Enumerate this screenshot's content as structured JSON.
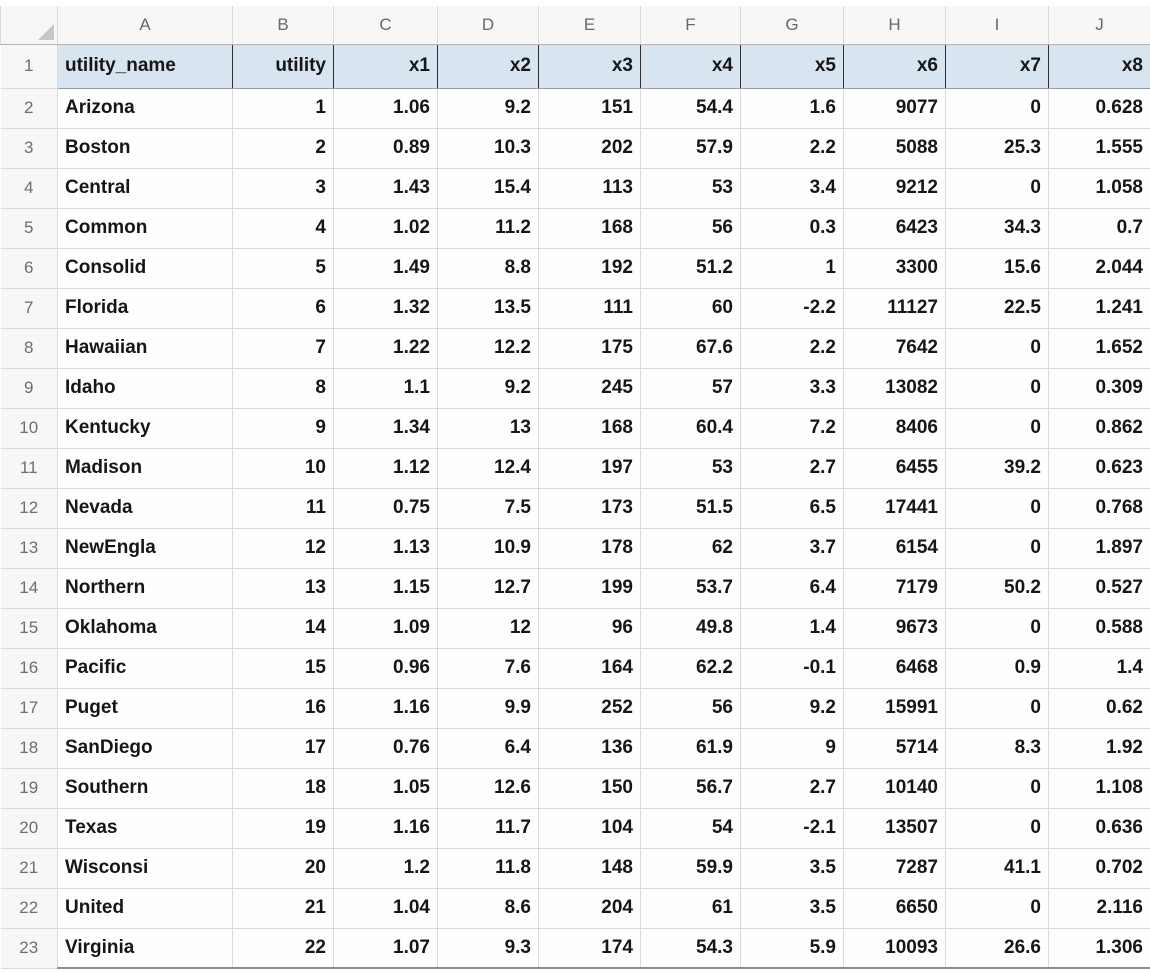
{
  "spreadsheet": {
    "column_letters": [
      "A",
      "B",
      "C",
      "D",
      "E",
      "F",
      "G",
      "H",
      "I",
      "J"
    ],
    "header_row": {
      "row_number": "1",
      "cells": [
        "utility_name",
        "utility",
        "x1",
        "x2",
        "x3",
        "x4",
        "x5",
        "x6",
        "x7",
        "x8"
      ]
    },
    "rows": [
      {
        "row_number": "2",
        "name": "Arizona",
        "values": [
          "1",
          "1.06",
          "9.2",
          "151",
          "54.4",
          "1.6",
          "9077",
          "0",
          "0.628"
        ]
      },
      {
        "row_number": "3",
        "name": "Boston",
        "values": [
          "2",
          "0.89",
          "10.3",
          "202",
          "57.9",
          "2.2",
          "5088",
          "25.3",
          "1.555"
        ]
      },
      {
        "row_number": "4",
        "name": "Central",
        "values": [
          "3",
          "1.43",
          "15.4",
          "113",
          "53",
          "3.4",
          "9212",
          "0",
          "1.058"
        ]
      },
      {
        "row_number": "5",
        "name": "Common",
        "values": [
          "4",
          "1.02",
          "11.2",
          "168",
          "56",
          "0.3",
          "6423",
          "34.3",
          "0.7"
        ]
      },
      {
        "row_number": "6",
        "name": "Consolid",
        "values": [
          "5",
          "1.49",
          "8.8",
          "192",
          "51.2",
          "1",
          "3300",
          "15.6",
          "2.044"
        ]
      },
      {
        "row_number": "7",
        "name": "Florida",
        "values": [
          "6",
          "1.32",
          "13.5",
          "111",
          "60",
          "-2.2",
          "11127",
          "22.5",
          "1.241"
        ]
      },
      {
        "row_number": "8",
        "name": "Hawaiian",
        "values": [
          "7",
          "1.22",
          "12.2",
          "175",
          "67.6",
          "2.2",
          "7642",
          "0",
          "1.652"
        ]
      },
      {
        "row_number": "9",
        "name": "Idaho",
        "values": [
          "8",
          "1.1",
          "9.2",
          "245",
          "57",
          "3.3",
          "13082",
          "0",
          "0.309"
        ]
      },
      {
        "row_number": "10",
        "name": "Kentucky",
        "values": [
          "9",
          "1.34",
          "13",
          "168",
          "60.4",
          "7.2",
          "8406",
          "0",
          "0.862"
        ]
      },
      {
        "row_number": "11",
        "name": "Madison",
        "values": [
          "10",
          "1.12",
          "12.4",
          "197",
          "53",
          "2.7",
          "6455",
          "39.2",
          "0.623"
        ]
      },
      {
        "row_number": "12",
        "name": "Nevada",
        "values": [
          "11",
          "0.75",
          "7.5",
          "173",
          "51.5",
          "6.5",
          "17441",
          "0",
          "0.768"
        ]
      },
      {
        "row_number": "13",
        "name": "NewEngla",
        "values": [
          "12",
          "1.13",
          "10.9",
          "178",
          "62",
          "3.7",
          "6154",
          "0",
          "1.897"
        ]
      },
      {
        "row_number": "14",
        "name": "Northern",
        "values": [
          "13",
          "1.15",
          "12.7",
          "199",
          "53.7",
          "6.4",
          "7179",
          "50.2",
          "0.527"
        ]
      },
      {
        "row_number": "15",
        "name": "Oklahoma",
        "values": [
          "14",
          "1.09",
          "12",
          "96",
          "49.8",
          "1.4",
          "9673",
          "0",
          "0.588"
        ]
      },
      {
        "row_number": "16",
        "name": "Pacific",
        "values": [
          "15",
          "0.96",
          "7.6",
          "164",
          "62.2",
          "-0.1",
          "6468",
          "0.9",
          "1.4"
        ]
      },
      {
        "row_number": "17",
        "name": "Puget",
        "values": [
          "16",
          "1.16",
          "9.9",
          "252",
          "56",
          "9.2",
          "15991",
          "0",
          "0.62"
        ]
      },
      {
        "row_number": "18",
        "name": "SanDiego",
        "values": [
          "17",
          "0.76",
          "6.4",
          "136",
          "61.9",
          "9",
          "5714",
          "8.3",
          "1.92"
        ]
      },
      {
        "row_number": "19",
        "name": "Southern",
        "values": [
          "18",
          "1.05",
          "12.6",
          "150",
          "56.7",
          "2.7",
          "10140",
          "0",
          "1.108"
        ]
      },
      {
        "row_number": "20",
        "name": "Texas",
        "values": [
          "19",
          "1.16",
          "11.7",
          "104",
          "54",
          "-2.1",
          "13507",
          "0",
          "0.636"
        ]
      },
      {
        "row_number": "21",
        "name": "Wisconsi",
        "values": [
          "20",
          "1.2",
          "11.8",
          "148",
          "59.9",
          "3.5",
          "7287",
          "41.1",
          "0.702"
        ]
      },
      {
        "row_number": "22",
        "name": "United",
        "values": [
          "21",
          "1.04",
          "8.6",
          "204",
          "61",
          "3.5",
          "6650",
          "0",
          "2.116"
        ]
      },
      {
        "row_number": "23",
        "name": "Virginia",
        "values": [
          "22",
          "1.07",
          "9.3",
          "174",
          "54.3",
          "5.9",
          "10093",
          "26.6",
          "1.306"
        ]
      }
    ],
    "colors": {
      "header_fill": "#d9e4f1",
      "gridline": "#d9d9d9",
      "heading_bg": "#f7f7f7",
      "heading_text": "#6e6e6e",
      "header_separator": "#2f2f2f"
    }
  }
}
